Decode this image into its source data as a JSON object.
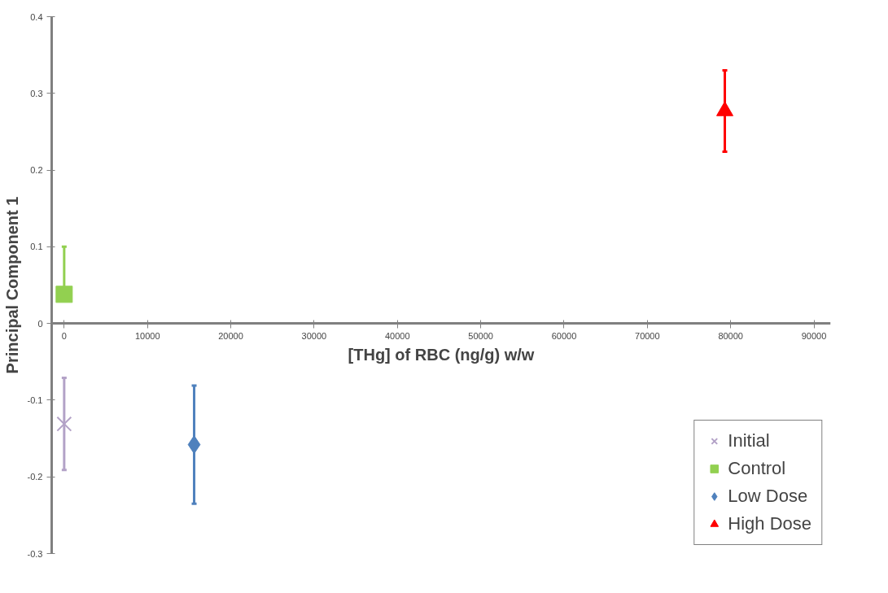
{
  "chart_data": {
    "type": "scatter",
    "xlabel": "[THg] of RBC (ng/g) w/w",
    "ylabel": "Principal Component 1",
    "xlim": [
      -1500,
      92000
    ],
    "ylim": [
      -0.3,
      0.4
    ],
    "xticks": [
      0,
      10000,
      20000,
      30000,
      40000,
      50000,
      60000,
      70000,
      80000,
      90000
    ],
    "yticks": [
      -0.3,
      -0.2,
      -0.1,
      0,
      0.1,
      0.2,
      0.3,
      0.4
    ],
    "grid": false,
    "legend": "bottom right",
    "series": [
      {
        "name": "Initial",
        "color": "#b3a2c7",
        "marker": "cross",
        "x": [
          0
        ],
        "values": [
          -0.131
        ],
        "errors": [
          0.06
        ]
      },
      {
        "name": "Control",
        "color": "#92d050",
        "marker": "square",
        "x": [
          0
        ],
        "values": [
          0.038
        ],
        "errors": [
          [
            0.038,
            0.1
          ]
        ]
      },
      {
        "name": "Low Dose",
        "color": "#4f81bd",
        "marker": "diamond",
        "x": [
          15600
        ],
        "values": [
          -0.158
        ],
        "errors": [
          0.077
        ]
      },
      {
        "name": "High Dose",
        "color": "#ff0000",
        "marker": "triangle",
        "x": [
          79300
        ],
        "values": [
          0.277
        ],
        "errors": [
          0.053
        ]
      }
    ]
  }
}
